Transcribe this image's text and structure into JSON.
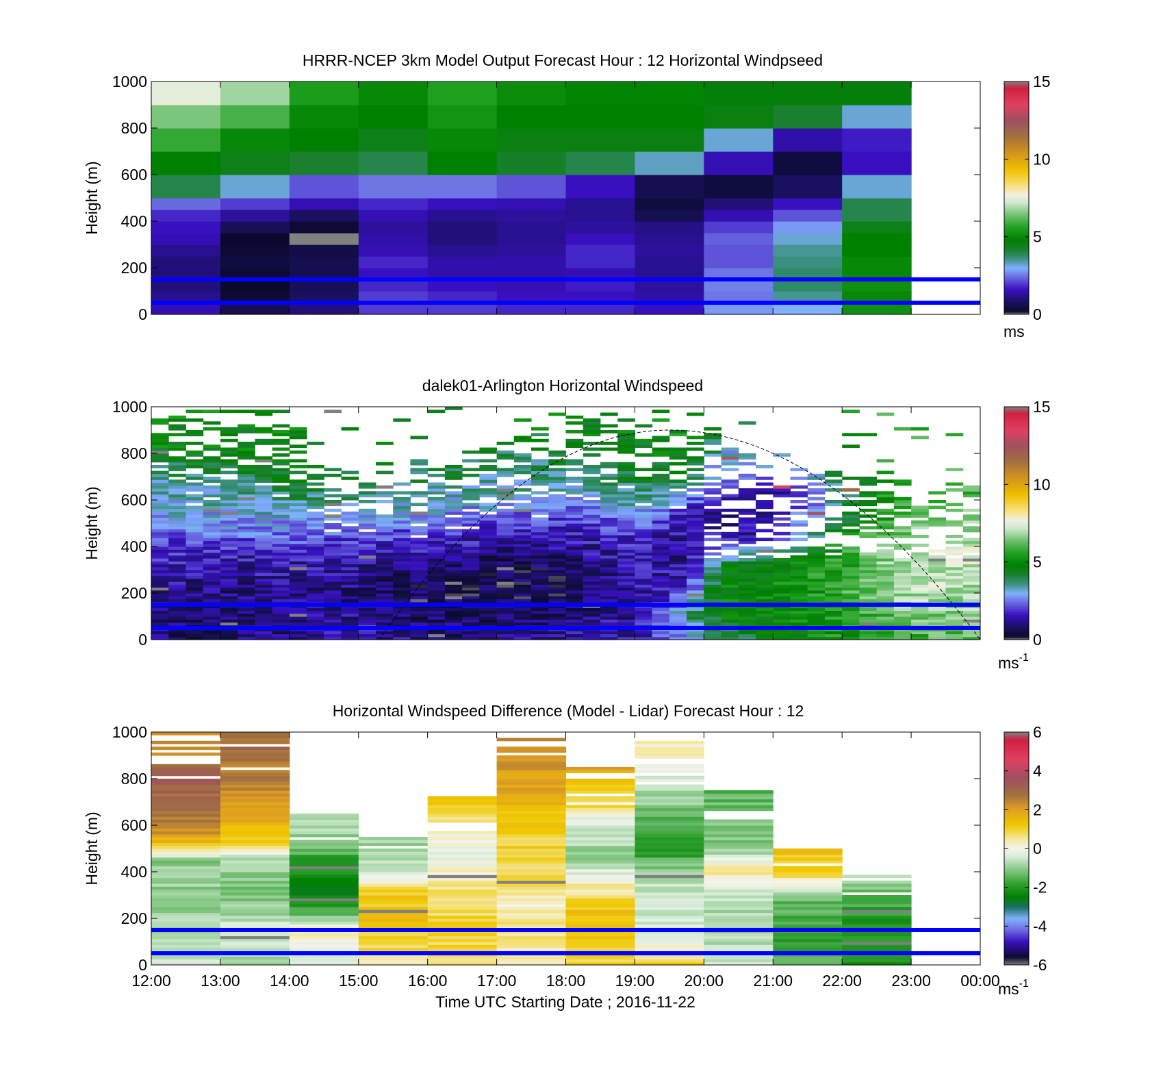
{
  "figure": {
    "x_axis_label": "Time UTC  Starting Date ; 2016-11-22",
    "time_ticks": [
      "12:00",
      "13:00",
      "14:00",
      "15:00",
      "16:00",
      "17:00",
      "18:00",
      "19:00",
      "20:00",
      "21:00",
      "22:00",
      "23:00",
      "00:00"
    ]
  },
  "chart_data": [
    {
      "type": "heatmap",
      "title": "HRRR-NCEP 3km Model Output   Forecast Hour : 12 Horizontal Windpseed",
      "ylabel": "Height (m)",
      "ylim": [
        0,
        1000
      ],
      "yticks": [
        0,
        200,
        400,
        600,
        800,
        1000
      ],
      "colorbar": {
        "label": "ms",
        "ticks": [
          0,
          5,
          10,
          15
        ],
        "range": [
          0,
          15
        ],
        "scale": "speed"
      },
      "x_hours": [
        12,
        13,
        14,
        15,
        16,
        17,
        18,
        19,
        20,
        21,
        22,
        23
      ],
      "heights_m": [
        25,
        75,
        125,
        175,
        225,
        275,
        325,
        375,
        425,
        475,
        550,
        650,
        750,
        850,
        950
      ],
      "values": [
        [
          1.5,
          0.6,
          1.0,
          2.0,
          2.0,
          1.8,
          1.8,
          1.6,
          2.8,
          3.0,
          5.2
        ],
        [
          1.2,
          0.3,
          0.8,
          2.0,
          1.8,
          1.6,
          1.6,
          1.4,
          2.5,
          3.5,
          5.0
        ],
        [
          1.0,
          0.2,
          0.7,
          1.8,
          1.6,
          1.5,
          1.7,
          1.3,
          2.6,
          3.8,
          5.2
        ],
        [
          1.0,
          0.3,
          0.6,
          1.6,
          1.4,
          1.4,
          1.5,
          1.2,
          2.5,
          3.8,
          5.0
        ],
        [
          1.0,
          0.4,
          0.6,
          1.8,
          1.4,
          1.4,
          1.8,
          1.2,
          2.2,
          3.6,
          5.0
        ],
        [
          1.2,
          0.3,
          0.5,
          1.5,
          1.2,
          1.3,
          1.8,
          1.3,
          2.2,
          3.5,
          4.8
        ],
        [
          1.5,
          0.2,
          15.0,
          1.4,
          1.0,
          1.2,
          1.6,
          1.2,
          2.3,
          3.2,
          4.8
        ],
        [
          1.6,
          0.7,
          0.3,
          1.3,
          1.0,
          1.2,
          1.3,
          1.1,
          2.0,
          2.8,
          4.5
        ],
        [
          1.8,
          1.3,
          0.8,
          1.5,
          1.2,
          1.3,
          1.2,
          0.6,
          1.5,
          2.2,
          4.0
        ],
        [
          2.4,
          2.0,
          1.5,
          1.8,
          1.6,
          1.5,
          1.2,
          0.4,
          1.0,
          1.6,
          4.0
        ],
        [
          4.0,
          3.2,
          2.2,
          2.5,
          2.5,
          2.2,
          1.6,
          0.6,
          0.4,
          0.8,
          3.2
        ],
        [
          4.8,
          4.5,
          4.2,
          4.0,
          4.8,
          4.3,
          4.0,
          3.3,
          1.5,
          0.4,
          1.6
        ],
        [
          5.8,
          5.0,
          4.8,
          4.5,
          5.0,
          4.6,
          4.6,
          4.6,
          3.2,
          1.4,
          1.7
        ],
        [
          6.5,
          6.0,
          5.0,
          4.8,
          5.3,
          4.8,
          4.8,
          4.8,
          4.6,
          4.2,
          3.2
        ],
        [
          7.5,
          6.8,
          5.5,
          5.0,
          5.6,
          5.1,
          4.9,
          4.9,
          4.7,
          4.7,
          4.7
        ]
      ]
    },
    {
      "type": "heatmap",
      "title": "dalek01-Arlington  Horizontal Windspeed",
      "ylabel": "Height (m)",
      "ylim": [
        0,
        1000
      ],
      "yticks": [
        0,
        200,
        400,
        600,
        800,
        1000
      ],
      "colorbar": {
        "label": "ms",
        "label_superscript": "-1",
        "ticks": [
          0,
          5,
          10,
          15
        ],
        "range": [
          0,
          15
        ],
        "scale": "speed"
      },
      "time_range_h": [
        12,
        24
      ],
      "profile_interval_min": 15,
      "height_bin_m": 12.5,
      "max_valid_height_m": [
        [
          12.0,
          1000
        ],
        [
          13.0,
          1000
        ],
        [
          14.0,
          1000
        ],
        [
          14.5,
          800
        ],
        [
          15.0,
          750
        ],
        [
          15.5,
          760
        ],
        [
          16.0,
          780
        ],
        [
          16.5,
          800
        ],
        [
          17.0,
          850
        ],
        [
          17.5,
          900
        ],
        [
          18.0,
          950
        ],
        [
          18.5,
          980
        ],
        [
          19.0,
          990
        ],
        [
          19.5,
          980
        ],
        [
          20.0,
          920
        ],
        [
          20.5,
          880
        ],
        [
          21.0,
          820
        ],
        [
          21.5,
          760
        ],
        [
          22.0,
          720
        ],
        [
          22.5,
          700
        ],
        [
          23.0,
          690
        ],
        [
          23.5,
          680
        ],
        [
          24.0,
          680
        ]
      ],
      "profiles": [
        {
          "t": 12.0,
          "h": [
            0,
            200,
            400,
            550,
            700,
            850,
            1000
          ],
          "s": [
            1.0,
            1.2,
            2.0,
            3.0,
            3.5,
            5.0,
            5.2
          ]
        },
        {
          "t": 13.0,
          "h": [
            0,
            200,
            350,
            500,
            650,
            800,
            1000
          ],
          "s": [
            0.8,
            1.0,
            1.5,
            2.8,
            3.5,
            4.8,
            5.0
          ]
        },
        {
          "t": 14.0,
          "h": [
            0,
            200,
            350,
            500,
            650,
            800,
            1000
          ],
          "s": [
            1.2,
            1.2,
            1.6,
            2.8,
            4.2,
            4.8,
            5.0
          ]
        },
        {
          "t": 15.0,
          "h": [
            0,
            200,
            300,
            450,
            600,
            750,
            1000
          ],
          "s": [
            1.4,
            1.0,
            1.2,
            2.0,
            3.5,
            4.8,
            5.0
          ]
        },
        {
          "t": 16.0,
          "h": [
            0,
            200,
            300,
            420,
            550,
            700,
            1000
          ],
          "s": [
            1.0,
            0.6,
            0.9,
            1.8,
            3.0,
            4.0,
            4.8
          ]
        },
        {
          "t": 17.0,
          "h": [
            0,
            200,
            350,
            450,
            600,
            750,
            1000
          ],
          "s": [
            1.0,
            0.5,
            0.8,
            1.6,
            3.0,
            3.8,
            4.8
          ]
        },
        {
          "t": 18.0,
          "h": [
            0,
            200,
            350,
            500,
            650,
            800,
            1000
          ],
          "s": [
            1.4,
            0.6,
            1.0,
            1.8,
            3.2,
            4.2,
            5.0
          ]
        },
        {
          "t": 19.0,
          "h": [
            0,
            150,
            300,
            450,
            600,
            750,
            1000
          ],
          "s": [
            1.5,
            1.2,
            1.5,
            1.8,
            3.5,
            4.5,
            5.0
          ]
        },
        {
          "t": 19.75,
          "h": [
            0,
            100,
            250,
            400,
            550,
            700,
            1000
          ],
          "s": [
            2.5,
            3.5,
            1.5,
            1.0,
            1.8,
            4.6,
            5.5
          ]
        },
        {
          "t": 20.25,
          "h": [
            0,
            100,
            200,
            300,
            450,
            600,
            1000
          ],
          "s": [
            3.5,
            4.8,
            5.0,
            4.5,
            1.5,
            1.2,
            5.0
          ]
        },
        {
          "t": 21.0,
          "h": [
            0,
            100,
            250,
            350,
            450,
            600,
            1000
          ],
          "s": [
            4.8,
            4.8,
            5.0,
            4.5,
            1.2,
            1.0,
            5.5
          ]
        },
        {
          "t": 22.0,
          "h": [
            0,
            100,
            250,
            400,
            550,
            700,
            1000
          ],
          "s": [
            5.2,
            5.5,
            5.8,
            5.5,
            4.0,
            3.8,
            6.5
          ]
        },
        {
          "t": 23.0,
          "h": [
            0,
            100,
            250,
            400,
            550,
            700,
            1000
          ],
          "s": [
            5.8,
            6.5,
            7.3,
            7.0,
            6.2,
            5.8,
            6.0
          ]
        },
        {
          "t": 24.0,
          "h": [
            0,
            100,
            250,
            400,
            550,
            700,
            1000
          ],
          "s": [
            6.0,
            6.5,
            7.0,
            7.2,
            6.3,
            5.8,
            6.0
          ]
        }
      ],
      "overlay_curve": {
        "style": "dashed",
        "t_start": 15.3,
        "t_peak": 19.5,
        "t_end": 24.0,
        "h_peak_m": 900
      }
    },
    {
      "type": "heatmap",
      "title": "Horizontal Windspeed Difference (Model - Lidar) Forecast Hour : 12",
      "ylabel": "Height (m)",
      "ylim": [
        0,
        1000
      ],
      "yticks": [
        0,
        200,
        400,
        600,
        800,
        1000
      ],
      "colorbar": {
        "label": "ms",
        "label_superscript": "-1",
        "ticks": [
          -6,
          -4,
          -2,
          0,
          2,
          4,
          6
        ],
        "range": [
          -6,
          6
        ],
        "scale": "difference"
      },
      "x_hours": [
        12,
        13,
        14,
        15,
        16,
        17,
        18,
        19,
        20,
        21,
        22,
        23
      ],
      "column_top_m": [
        1000,
        1000,
        640,
        550,
        720,
        1000,
        840,
        960,
        750,
        500,
        380
      ],
      "profiles": [
        {
          "h": [
            0,
            150,
            300,
            450,
            500,
            600,
            800,
            1000
          ],
          "s": [
            -0.5,
            -0.8,
            -1.0,
            -1.0,
            1.0,
            2.6,
            3.2,
            2.0
          ]
        },
        {
          "h": [
            0,
            150,
            300,
            450,
            520,
            650,
            800,
            1000
          ],
          "s": [
            -0.8,
            -0.5,
            -1.2,
            -0.8,
            1.0,
            2.0,
            2.5,
            3.0
          ]
        },
        {
          "h": [
            0,
            150,
            250,
            350,
            450,
            550,
            640
          ],
          "s": [
            -0.5,
            0.3,
            -2.0,
            -2.5,
            -1.8,
            -1.0,
            -0.5
          ]
        },
        {
          "h": [
            0,
            100,
            200,
            300,
            400,
            550
          ],
          "s": [
            0.5,
            1.0,
            1.3,
            1.2,
            -0.4,
            -1.0
          ]
        },
        {
          "h": [
            0,
            150,
            300,
            400,
            500,
            600,
            720
          ],
          "s": [
            0.8,
            1.0,
            0.8,
            0.3,
            -0.3,
            0.6,
            1.2
          ]
        },
        {
          "h": [
            0,
            150,
            250,
            350,
            450,
            600,
            800,
            1000
          ],
          "s": [
            0.3,
            0.6,
            0.3,
            0.6,
            0.8,
            1.2,
            2.0,
            2.3
          ]
        },
        {
          "h": [
            0,
            100,
            250,
            350,
            450,
            600,
            700,
            840
          ],
          "s": [
            1.0,
            1.2,
            1.3,
            0.2,
            -1.0,
            -0.5,
            1.0,
            1.8
          ]
        },
        {
          "h": [
            0,
            100,
            250,
            400,
            500,
            600,
            800,
            960
          ],
          "s": [
            1.2,
            -0.3,
            -0.6,
            -0.8,
            -2.2,
            -1.5,
            -0.4,
            0.5
          ]
        },
        {
          "h": [
            0,
            150,
            300,
            400,
            500,
            750
          ],
          "s": [
            -0.5,
            -0.8,
            -0.6,
            0.6,
            -1.0,
            -1.5
          ]
        },
        {
          "h": [
            0,
            150,
            300,
            400,
            500
          ],
          "s": [
            -1.5,
            -1.8,
            -1.2,
            1.2,
            1.2
          ]
        },
        {
          "h": [
            0,
            150,
            300,
            380
          ],
          "s": [
            -2.0,
            -2.2,
            -1.5,
            -0.5
          ]
        }
      ]
    }
  ],
  "reference_lines": [
    {
      "height_m": 50,
      "color": "#0000ff"
    },
    {
      "height_m": 150,
      "color": "#0000ff"
    }
  ],
  "colors": {
    "speed_colormap": [
      [
        0.0,
        "#808080"
      ],
      [
        0.2,
        "#0a0a2e"
      ],
      [
        0.8,
        "#1a1060"
      ],
      [
        1.6,
        "#3810c0"
      ],
      [
        2.4,
        "#6a6ae0"
      ],
      [
        3.0,
        "#80b0ff"
      ],
      [
        3.6,
        "#3a9080"
      ],
      [
        4.2,
        "#1a8030"
      ],
      [
        4.8,
        "#008000"
      ],
      [
        5.6,
        "#20a020"
      ],
      [
        6.4,
        "#70c070"
      ],
      [
        7.2,
        "#d0e8d0"
      ],
      [
        7.7,
        "#f0f0e0"
      ],
      [
        8.3,
        "#f8e080"
      ],
      [
        9.3,
        "#f0c000"
      ],
      [
        10.5,
        "#d09020"
      ],
      [
        11.5,
        "#a07040"
      ],
      [
        12.5,
        "#a05060"
      ],
      [
        13.5,
        "#e04060"
      ],
      [
        14.6,
        "#d02040"
      ],
      [
        15.0,
        "#808080"
      ]
    ],
    "diff_colormap": [
      [
        -6.0,
        "#808080"
      ],
      [
        -5.6,
        "#0a0a2e"
      ],
      [
        -4.8,
        "#3810c0"
      ],
      [
        -4.2,
        "#6a6ae0"
      ],
      [
        -3.6,
        "#80b0ff"
      ],
      [
        -3.0,
        "#1a7060"
      ],
      [
        -2.5,
        "#008000"
      ],
      [
        -1.8,
        "#30a030"
      ],
      [
        -1.0,
        "#90cc90"
      ],
      [
        -0.4,
        "#d8ecd8"
      ],
      [
        0.0,
        "#f4f4ec"
      ],
      [
        0.5,
        "#f4e8a0"
      ],
      [
        1.2,
        "#f0c800"
      ],
      [
        2.0,
        "#e0a020"
      ],
      [
        2.8,
        "#a07040"
      ],
      [
        3.6,
        "#a05060"
      ],
      [
        4.6,
        "#e04060"
      ],
      [
        5.6,
        "#d02040"
      ],
      [
        6.0,
        "#808080"
      ]
    ]
  }
}
